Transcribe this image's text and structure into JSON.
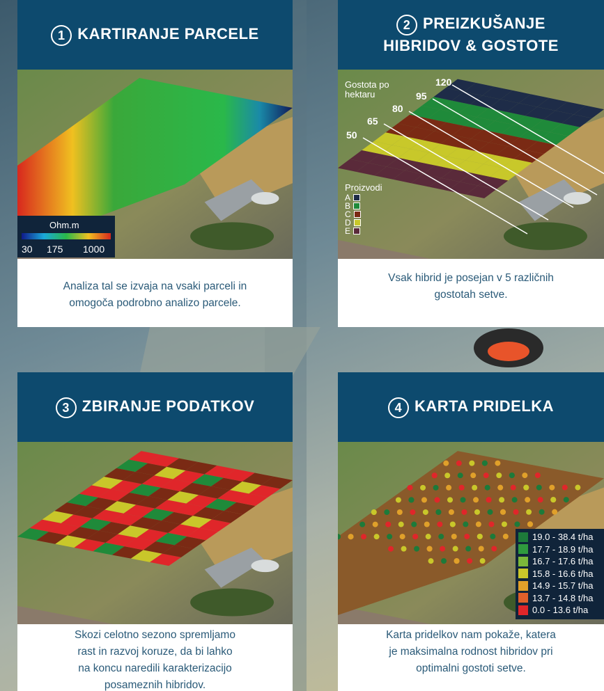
{
  "panels": [
    {
      "number": 1,
      "title": [
        "KARTIRANJE PARCELE"
      ],
      "caption": [
        "Analiza tal se izvaja na vsaki parceli in",
        "omogoča podrobno analizo parcele."
      ],
      "legend": {
        "unit": "Ohm.m",
        "ticks": [
          30,
          175,
          1000
        ]
      }
    },
    {
      "number": 2,
      "title": [
        "PREIZKUŠANJE",
        "HIBRIDOV & GOSTOTE"
      ],
      "caption": [
        "Vsak hibrid je posejan v 5 različnih",
        "gostotah setve."
      ],
      "density_label": [
        "Gostota po",
        "hektaru"
      ],
      "densities": [
        50,
        65,
        80,
        95,
        120
      ],
      "products_label": "Proizvodi",
      "products": [
        {
          "name": "A",
          "color": "#1e2c48"
        },
        {
          "name": "B",
          "color": "#1f8a3a"
        },
        {
          "name": "C",
          "color": "#7a2a14"
        },
        {
          "name": "D",
          "color": "#c8c82a"
        },
        {
          "name": "E",
          "color": "#5a2a3a"
        }
      ]
    },
    {
      "number": 3,
      "title": [
        "ZBIRANJE PODATKOV"
      ],
      "caption": [
        "Skozi celotno sezono spremljamo",
        "rast in razvoj koruze, da bi lahko",
        "na koncu naredili karakterizacijo",
        "posameznih hibridov."
      ]
    },
    {
      "number": 4,
      "title": [
        "KARTA PRIDELKA"
      ],
      "caption": [
        "Karta pridelkov nam pokaže, katera",
        "je maksimalna rodnost hibridov pri",
        "optimalni gostoti setve."
      ],
      "legend": [
        {
          "label": "19.0 - 38.4 t/ha",
          "color": "#1d7a3a"
        },
        {
          "label": "17.7 - 18.9 t/ha",
          "color": "#2f9a3e"
        },
        {
          "label": "16.7 - 17.6 t/ha",
          "color": "#7bb83a"
        },
        {
          "label": "15.8 - 16.6 t/ha",
          "color": "#c9c72a"
        },
        {
          "label": "14.9 - 15.7 t/ha",
          "color": "#e0a02a"
        },
        {
          "label": "13.7 - 14.8 t/ha",
          "color": "#e0602a"
        },
        {
          "label": "0.0 - 13.6 t/ha",
          "color": "#e0262a"
        }
      ]
    }
  ]
}
